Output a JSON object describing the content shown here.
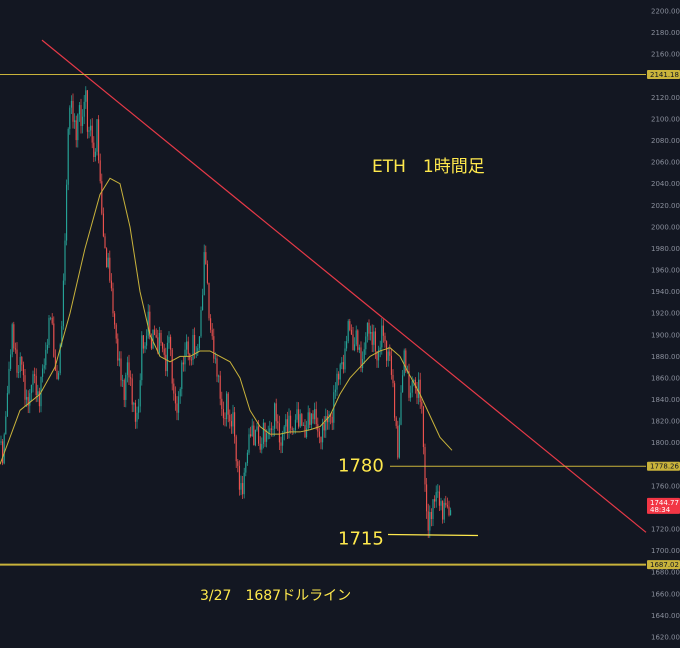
{
  "chart_data": {
    "type": "candlestick",
    "title": "ETH　1時間足",
    "xlabel": "",
    "ylabel": "",
    "ylim": [
      1615,
      2205
    ],
    "y_ticks": [
      1620,
      1640,
      1660,
      1680,
      1700,
      1720,
      1740,
      1760,
      1780,
      1800,
      1820,
      1840,
      1860,
      1880,
      1900,
      1920,
      1940,
      1960,
      1980,
      2000,
      2020,
      2040,
      2060,
      2080,
      2100,
      2120,
      2140,
      2160,
      2180,
      2200
    ],
    "grid": false,
    "series": [
      {
        "path": [
          [
            0,
            1800
          ],
          [
            3,
            1780
          ],
          [
            6,
            1830
          ],
          [
            9,
            1870
          ],
          [
            12,
            1905
          ],
          [
            15,
            1880
          ],
          [
            18,
            1860
          ],
          [
            21,
            1890
          ],
          [
            24,
            1850
          ],
          [
            27,
            1830
          ],
          [
            30,
            1845
          ],
          [
            33,
            1870
          ],
          [
            36,
            1850
          ],
          [
            39,
            1830
          ],
          [
            42,
            1870
          ],
          [
            45,
            1880
          ],
          [
            48,
            1900
          ],
          [
            51,
            1920
          ],
          [
            54,
            1880
          ],
          [
            57,
            1860
          ],
          [
            60,
            1880
          ],
          [
            63,
            1930
          ],
          [
            66,
            2020
          ],
          [
            68,
            2090
          ],
          [
            70,
            2120
          ],
          [
            73,
            2100
          ],
          [
            76,
            2080
          ],
          [
            79,
            2120
          ],
          [
            82,
            2090
          ],
          [
            85,
            2130
          ],
          [
            88,
            2080
          ],
          [
            91,
            2100
          ],
          [
            94,
            2060
          ],
          [
            97,
            2090
          ],
          [
            100,
            2040
          ],
          [
            103,
            2000
          ],
          [
            106,
            1970
          ],
          [
            109,
            1960
          ],
          [
            112,
            1930
          ],
          [
            115,
            1910
          ],
          [
            118,
            1880
          ],
          [
            121,
            1860
          ],
          [
            124,
            1840
          ],
          [
            127,
            1880
          ],
          [
            130,
            1860
          ],
          [
            133,
            1830
          ],
          [
            136,
            1820
          ],
          [
            139,
            1840
          ],
          [
            142,
            1900
          ],
          [
            145,
            1880
          ],
          [
            148,
            1920
          ],
          [
            151,
            1890
          ],
          [
            154,
            1910
          ],
          [
            157,
            1880
          ],
          [
            160,
            1900
          ],
          [
            163,
            1890
          ],
          [
            166,
            1870
          ],
          [
            169,
            1900
          ],
          [
            172,
            1860
          ],
          [
            175,
            1840
          ],
          [
            178,
            1830
          ],
          [
            181,
            1860
          ],
          [
            184,
            1880
          ],
          [
            187,
            1900
          ],
          [
            190,
            1870
          ],
          [
            193,
            1890
          ],
          [
            196,
            1880
          ],
          [
            199,
            1900
          ],
          [
            202,
            1930
          ],
          [
            205,
            1980
          ],
          [
            207,
            1950
          ],
          [
            209,
            1920
          ],
          [
            212,
            1900
          ],
          [
            215,
            1870
          ],
          [
            218,
            1860
          ],
          [
            221,
            1840
          ],
          [
            224,
            1820
          ],
          [
            227,
            1840
          ],
          [
            230,
            1810
          ],
          [
            233,
            1830
          ],
          [
            236,
            1790
          ],
          [
            239,
            1760
          ],
          [
            242,
            1750
          ],
          [
            245,
            1780
          ],
          [
            248,
            1800
          ],
          [
            251,
            1810
          ],
          [
            254,
            1800
          ],
          [
            257,
            1820
          ],
          [
            260,
            1790
          ],
          [
            263,
            1810
          ],
          [
            266,
            1800
          ],
          [
            269,
            1820
          ],
          [
            272,
            1810
          ],
          [
            275,
            1830
          ],
          [
            278,
            1810
          ],
          [
            281,
            1800
          ],
          [
            284,
            1820
          ],
          [
            287,
            1810
          ],
          [
            290,
            1820
          ],
          [
            293,
            1810
          ],
          [
            296,
            1830
          ],
          [
            299,
            1815
          ],
          [
            302,
            1820
          ],
          [
            305,
            1810
          ],
          [
            308,
            1825
          ],
          [
            311,
            1815
          ],
          [
            314,
            1830
          ],
          [
            317,
            1820
          ],
          [
            320,
            1800
          ],
          [
            323,
            1810
          ],
          [
            326,
            1820
          ],
          [
            329,
            1830
          ],
          [
            332,
            1820
          ],
          [
            335,
            1850
          ],
          [
            338,
            1860
          ],
          [
            341,
            1880
          ],
          [
            344,
            1870
          ],
          [
            347,
            1900
          ],
          [
            350,
            1910
          ],
          [
            353,
            1890
          ],
          [
            356,
            1900
          ],
          [
            359,
            1880
          ],
          [
            362,
            1870
          ],
          [
            365,
            1900
          ],
          [
            368,
            1910
          ],
          [
            371,
            1890
          ],
          [
            374,
            1900
          ],
          [
            377,
            1880
          ],
          [
            380,
            1890
          ],
          [
            383,
            1905
          ],
          [
            386,
            1880
          ],
          [
            389,
            1890
          ],
          [
            392,
            1860
          ],
          [
            395,
            1820
          ],
          [
            398,
            1790
          ],
          [
            401,
            1850
          ],
          [
            404,
            1880
          ],
          [
            407,
            1860
          ],
          [
            410,
            1840
          ],
          [
            413,
            1870
          ],
          [
            416,
            1840
          ],
          [
            419,
            1850
          ],
          [
            422,
            1830
          ],
          [
            424,
            1790
          ],
          [
            426,
            1740
          ],
          [
            428,
            1720
          ],
          [
            431,
            1730
          ],
          [
            434,
            1750
          ],
          [
            437,
            1760
          ],
          [
            440,
            1740
          ],
          [
            443,
            1730
          ],
          [
            446,
            1750
          ],
          [
            449,
            1735
          ],
          [
            452,
            1745
          ]
        ],
        "ma": [
          [
            0,
            1780
          ],
          [
            20,
            1830
          ],
          [
            40,
            1845
          ],
          [
            55,
            1870
          ],
          [
            70,
            1920
          ],
          [
            85,
            1980
          ],
          [
            100,
            2030
          ],
          [
            110,
            2045
          ],
          [
            120,
            2040
          ],
          [
            130,
            2000
          ],
          [
            140,
            1940
          ],
          [
            150,
            1900
          ],
          [
            160,
            1880
          ],
          [
            170,
            1875
          ],
          [
            180,
            1880
          ],
          [
            190,
            1880
          ],
          [
            200,
            1885
          ],
          [
            210,
            1885
          ],
          [
            220,
            1880
          ],
          [
            230,
            1875
          ],
          [
            240,
            1860
          ],
          [
            250,
            1830
          ],
          [
            260,
            1815
          ],
          [
            270,
            1808
          ],
          [
            280,
            1808
          ],
          [
            290,
            1810
          ],
          [
            300,
            1810
          ],
          [
            310,
            1812
          ],
          [
            320,
            1815
          ],
          [
            330,
            1825
          ],
          [
            340,
            1845
          ],
          [
            350,
            1860
          ],
          [
            360,
            1870
          ],
          [
            370,
            1880
          ],
          [
            380,
            1885
          ],
          [
            390,
            1888
          ],
          [
            400,
            1880
          ],
          [
            410,
            1862
          ],
          [
            420,
            1845
          ],
          [
            430,
            1825
          ],
          [
            440,
            1805
          ],
          [
            452,
            1793
          ]
        ]
      }
    ],
    "lines": {
      "resistance": {
        "from": [
          42,
          2173
        ],
        "to": [
          646,
          1717
        ],
        "color": "#e53947"
      },
      "support_top": {
        "price": 2141.18,
        "color": "#c9b33b"
      },
      "support_1780": {
        "price": 1778.26,
        "color": "#c9b33b"
      },
      "support_1715": {
        "price": 1715,
        "from": 388,
        "to": 478,
        "color": "#ffe94d"
      },
      "support_bottom": {
        "price": 1687.02,
        "color": "#c9b33b"
      }
    },
    "price_labels": [
      {
        "text": "2141.18",
        "price": 2141.18,
        "bg": "#c9b33b",
        "fg": "#131722"
      },
      {
        "text": "1778.26",
        "price": 1778.26,
        "bg": "#c9b33b",
        "fg": "#131722"
      },
      {
        "text": "1744.77",
        "sub": "48:34",
        "price": 1744.77,
        "bg": "#f23645",
        "fg": "#ffffff"
      },
      {
        "text": "1687.02",
        "price": 1687.02,
        "bg": "#c9b33b",
        "fg": "#131722"
      }
    ],
    "annotations": [
      {
        "text": "1780",
        "price": 1780
      },
      {
        "text": "1715",
        "price": 1715
      },
      {
        "text": "3/27　1687ドルライン",
        "price": 1660
      }
    ]
  },
  "colors": {
    "background": "#131722",
    "up": "#26a69a",
    "down": "#ef5350",
    "ma": "#c9b33b",
    "annotation": "#ffe94d",
    "tick_text": "#8a8f9c"
  }
}
